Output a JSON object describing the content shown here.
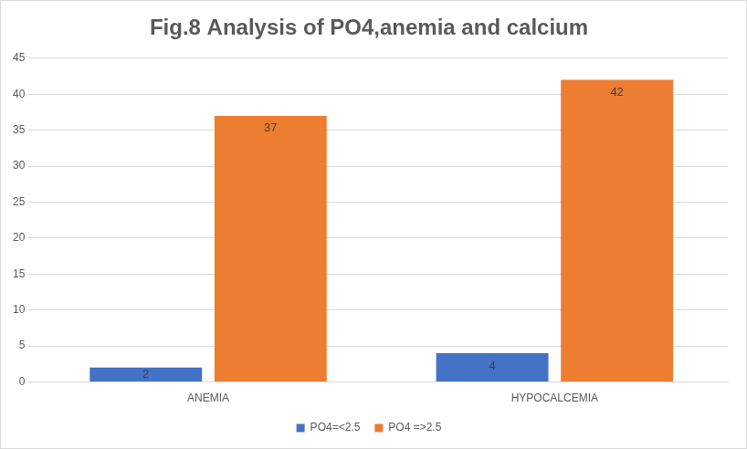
{
  "chart_data": {
    "type": "bar",
    "title": "Fig.8 Analysis of PO4,anemia and calcium",
    "categories": [
      "ANEMIA",
      "HYPOCALCEMIA"
    ],
    "series": [
      {
        "name": "PO4=<2.5",
        "color": "#4472c4",
        "values": [
          2,
          4
        ]
      },
      {
        "name": "PO4 =>2.5",
        "color": "#ed7d31",
        "values": [
          37,
          42
        ]
      }
    ],
    "ylim": [
      0,
      45
    ],
    "yticks": [
      0,
      5,
      10,
      15,
      20,
      25,
      30,
      35,
      40,
      45
    ],
    "grid": true,
    "legend": "bottom",
    "data_labels": true
  }
}
